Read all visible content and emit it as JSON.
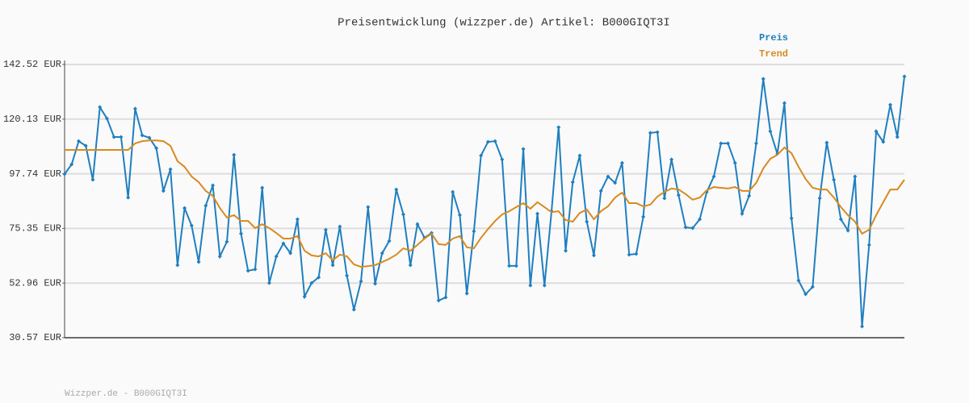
{
  "chart_data": {
    "type": "line",
    "title": "Preisentwicklung (wizzper.de) Artikel: B000GIQT3I",
    "ylim": [
      30.57,
      142.52
    ],
    "yticks": [
      {
        "value": 30.57,
        "label": "30.57 EUR"
      },
      {
        "value": 52.96,
        "label": "52.96 EUR"
      },
      {
        "value": 75.35,
        "label": "75.35 EUR"
      },
      {
        "value": 97.74,
        "label": "97.74 EUR"
      },
      {
        "value": 120.13,
        "label": "120.13 EUR"
      },
      {
        "value": 142.52,
        "label": "142.52 EUR"
      }
    ],
    "grid": true,
    "legend": "top-right",
    "series": [
      {
        "name": "Preis",
        "color": "#1f7fbf",
        "markers": true,
        "values": [
          97.6,
          101.6,
          111.1,
          109.2,
          95.3,
          125.0,
          120.4,
          112.8,
          112.8,
          88.0,
          124.4,
          113.5,
          112.5,
          108.2,
          90.7,
          99.6,
          60.3,
          83.7,
          76.5,
          61.6,
          84.7,
          93.0,
          63.9,
          69.9,
          105.5,
          73.2,
          58.0,
          58.6,
          92.0,
          53.0,
          63.9,
          69.2,
          65.2,
          79.1,
          47.4,
          53.0,
          55.3,
          74.8,
          60.3,
          76.1,
          56.0,
          42.1,
          53.7,
          84.1,
          52.7,
          65.2,
          70.2,
          91.3,
          81.1,
          60.3,
          77.1,
          71.5,
          73.5,
          45.8,
          47.1,
          90.3,
          80.8,
          48.7,
          74.2,
          105.2,
          110.8,
          111.1,
          103.6,
          60.0,
          60.0,
          107.9,
          52.0,
          81.4,
          52.0,
          82.4,
          116.8,
          66.2,
          94.3,
          105.2,
          78.1,
          64.3,
          90.7,
          96.6,
          94.0,
          102.2,
          64.6,
          64.9,
          80.1,
          114.5,
          114.8,
          87.7,
          103.6,
          89.0,
          75.8,
          75.5,
          79.1,
          90.3,
          96.6,
          110.2,
          110.2,
          102.2,
          81.4,
          88.7,
          110.2,
          136.6,
          115.1,
          105.9,
          126.7,
          79.5,
          54.0,
          48.4,
          51.4,
          87.7,
          110.5,
          95.3,
          79.1,
          74.5,
          96.6,
          35.2,
          68.6,
          115.1,
          110.8,
          126.0,
          112.8,
          137.6
        ]
      },
      {
        "name": "Trend",
        "color": "#d98a1e",
        "markers": false,
        "values": [
          107.5,
          107.5,
          107.5,
          107.5,
          107.5,
          107.5,
          107.5,
          107.5,
          107.5,
          107.5,
          110.2,
          111.1,
          111.4,
          111.4,
          111.1,
          109.2,
          102.9,
          100.6,
          96.6,
          94.3,
          90.7,
          88.7,
          83.7,
          79.8,
          80.8,
          78.4,
          78.4,
          75.5,
          77.1,
          75.5,
          73.5,
          71.2,
          71.2,
          72.2,
          66.2,
          64.3,
          63.9,
          65.2,
          62.3,
          64.6,
          63.9,
          60.6,
          59.6,
          59.9,
          60.3,
          61.6,
          62.9,
          64.6,
          67.2,
          66.2,
          68.6,
          71.2,
          73.2,
          68.9,
          68.6,
          71.2,
          72.2,
          67.6,
          67.2,
          71.5,
          75.1,
          78.4,
          81.1,
          82.4,
          84.1,
          85.7,
          83.4,
          86.1,
          84.1,
          82.0,
          82.4,
          78.8,
          78.1,
          81.7,
          83.1,
          79.1,
          82.4,
          84.4,
          88.0,
          90.0,
          85.7,
          85.7,
          84.4,
          85.1,
          88.4,
          90.3,
          91.7,
          91.3,
          89.4,
          87.1,
          88.0,
          91.0,
          92.3,
          92.0,
          91.7,
          92.3,
          90.7,
          90.7,
          94.0,
          99.9,
          103.9,
          105.5,
          108.5,
          106.2,
          100.6,
          95.6,
          92.0,
          91.3,
          91.3,
          88.0,
          84.1,
          80.8,
          78.1,
          73.2,
          74.8,
          80.8,
          86.1,
          91.3,
          91.3,
          95.3
        ]
      }
    ]
  },
  "footer": "Wizzper.de - B000GIQT3I"
}
